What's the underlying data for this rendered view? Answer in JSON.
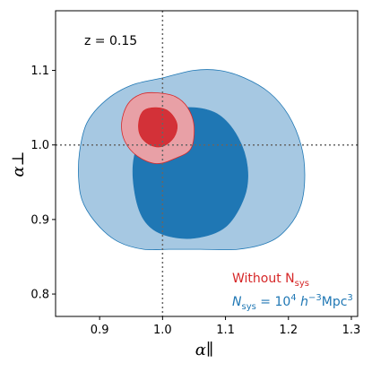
{
  "chart_data": {
    "type": "contour",
    "annotation": "z = 0.15",
    "xlabel": "α∥",
    "ylabel": "α⊥",
    "xlim": [
      0.83,
      1.31
    ],
    "ylim": [
      0.77,
      1.18
    ],
    "x_ticks": [
      "0.9",
      "1.0",
      "1.1",
      "1.2",
      "1.3"
    ],
    "y_ticks": [
      "0.8",
      "0.9",
      "1.0",
      "1.1"
    ],
    "reference_lines": {
      "x": 1.0,
      "y": 1.0,
      "style": "dotted"
    },
    "grid": false,
    "legend_placement": "bottom-right",
    "legend": [
      {
        "text": "Without N",
        "subscript": "sys",
        "color": "#d62728"
      },
      {
        "text": "N",
        "subscript": "sys",
        "tail": " = 10",
        "power": "4",
        "tail2": " h",
        "power2": "−3",
        "tail3": "Mpc",
        "power3": "3",
        "color": "#1f77b4"
      }
    ],
    "series": [
      {
        "color": "#1f77b4",
        "contours": [
          {
            "level": "outer",
            "fill": "#a6c8e2",
            "points": [
              [
                1.13,
                1.09
              ],
              [
                1.17,
                1.07
              ],
              [
                1.2,
                1.04
              ],
              [
                1.22,
                1.0
              ],
              [
                1.226,
                0.96
              ],
              [
                1.22,
                0.92
              ],
              [
                1.2,
                0.89
              ],
              [
                1.17,
                0.87
              ],
              [
                1.12,
                0.86
              ],
              [
                1.06,
                0.86
              ],
              [
                1.01,
                0.86
              ],
              [
                0.97,
                0.86
              ],
              [
                0.93,
                0.87
              ],
              [
                0.9,
                0.89
              ],
              [
                0.875,
                0.92
              ],
              [
                0.867,
                0.95
              ],
              [
                0.868,
                0.99
              ],
              [
                0.88,
                1.03
              ],
              [
                0.91,
                1.06
              ],
              [
                0.95,
                1.08
              ],
              [
                1.0,
                1.09
              ],
              [
                1.05,
                1.1
              ],
              [
                1.09,
                1.1
              ]
            ]
          },
          {
            "level": "inner",
            "fill": "#1f77b4",
            "points": [
              [
                1.05,
                1.05
              ],
              [
                1.09,
                1.04
              ],
              [
                1.12,
                1.01
              ],
              [
                1.135,
                0.97
              ],
              [
                1.13,
                0.93
              ],
              [
                1.1,
                0.89
              ],
              [
                1.05,
                0.875
              ],
              [
                1.0,
                0.88
              ],
              [
                0.97,
                0.9
              ],
              [
                0.955,
                0.94
              ],
              [
                0.955,
                0.985
              ],
              [
                0.975,
                1.02
              ],
              [
                1.01,
                1.045
              ]
            ]
          }
        ]
      },
      {
        "color": "#d62728",
        "contours": [
          {
            "level": "outer",
            "fill": "#e8a0a6",
            "points": [
              [
                0.99,
                1.07
              ],
              [
                1.02,
                1.065
              ],
              [
                1.04,
                1.05
              ],
              [
                1.05,
                1.025
              ],
              [
                1.045,
                0.995
              ],
              [
                1.02,
                0.982
              ],
              [
                0.99,
                0.975
              ],
              [
                0.96,
                0.985
              ],
              [
                0.94,
                1.005
              ],
              [
                0.935,
                1.03
              ],
              [
                0.945,
                1.055
              ],
              [
                0.965,
                1.068
              ]
            ]
          },
          {
            "level": "inner",
            "fill": "#d33138",
            "points": [
              [
                0.99,
                1.05
              ],
              [
                1.01,
                1.045
              ],
              [
                1.023,
                1.028
              ],
              [
                1.018,
                1.01
              ],
              [
                1.0,
                0.998
              ],
              [
                0.98,
                1.0
              ],
              [
                0.965,
                1.012
              ],
              [
                0.962,
                1.03
              ],
              [
                0.97,
                1.046
              ]
            ]
          }
        ]
      }
    ]
  }
}
